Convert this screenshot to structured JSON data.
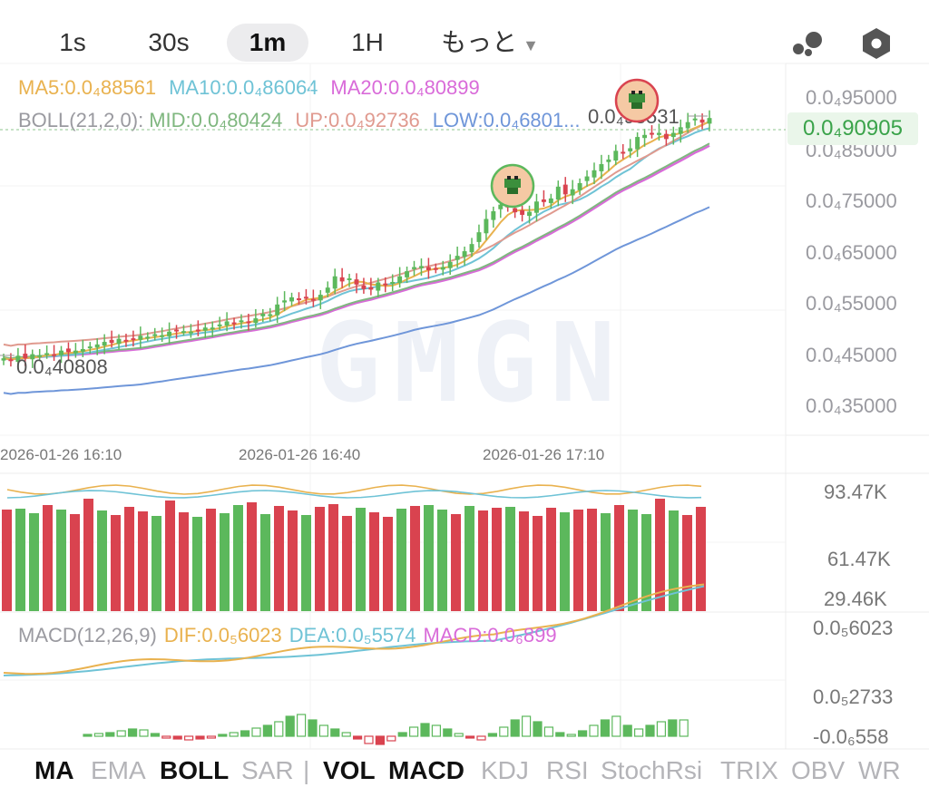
{
  "timeframes": {
    "t1s": "1s",
    "t30s": "30s",
    "t1m": "1m",
    "t1h": "1H",
    "more": "もっと",
    "active": "1m"
  },
  "icons": {
    "nodes": "bubbles-icon",
    "settings": "hexagon-settings-icon"
  },
  "colors": {
    "up": "#5cb85c",
    "down": "#d9434f",
    "ma5": "#e9b24f",
    "ma10": "#6fc3d6",
    "ma20": "#d96bd9",
    "boll_up": "#e09a8f",
    "boll_low": "#6f96d9",
    "boll_mid": "#7fb77f"
  },
  "legend_ma": {
    "ma5": "MA5:0.0₄88561",
    "ma10": "MA10:0.0₄86064",
    "ma20": "MA20:0.0₄80899"
  },
  "legend_boll": {
    "title": "BOLL(21,2,0):",
    "mid": "MID:0.0₄80424",
    "up": "UP:0.0₄92736",
    "low": "LOW:0.0₄6801..."
  },
  "price_axis": [
    "0.0₄95000",
    "0.0₄85000",
    "0.0₄75000",
    "0.0₄65000",
    "0.0₄55000",
    "0.0₄45000",
    "0.0₄35000"
  ],
  "current_price": "0.0₄90905",
  "high_marker": "0.0₄93531",
  "low_marker": "0.0₄40808",
  "time_axis": [
    "2026-01-26 16:10",
    "2026-01-26 16:40",
    "2026-01-26 17:10"
  ],
  "volume_axis": [
    "93.47K",
    "61.47K",
    "29.46K"
  ],
  "macd_legend": {
    "title": "MACD(12,26,9)",
    "dif": "DIF:0.0₅6023",
    "dea": "DEA:0.0₅5574",
    "macd": "MACD:0.0₆899"
  },
  "macd_axis": [
    "0.0₅6023",
    "0.0₅2733",
    "-0.0₆558"
  ],
  "watermark": "GMGN",
  "indicators": [
    {
      "label": "MA",
      "on": true
    },
    {
      "label": "EMA",
      "on": false
    },
    {
      "label": "BOLL",
      "on": true
    },
    {
      "label": "SAR",
      "on": false
    },
    {
      "label": "VOL",
      "on": true
    },
    {
      "label": "MACD",
      "on": true
    },
    {
      "label": "KDJ",
      "on": false
    },
    {
      "label": "RSI",
      "on": false
    },
    {
      "label": "StochRsi",
      "on": false
    },
    {
      "label": "TRIX",
      "on": false
    },
    {
      "label": "OBV",
      "on": false
    },
    {
      "label": "WR",
      "on": false
    }
  ],
  "chart_data": {
    "type": "candlestick",
    "price_unit": "0.0₄ (×1e-5)",
    "ylim": [
      3.15e-05,
      9.72e-05
    ],
    "x_ticks": [
      "2026-01-26 16:10",
      "2026-01-26 16:40",
      "2026-01-26 17:10"
    ],
    "candles_close": [
      4.4e-05,
      4.35e-05,
      4.45e-05,
      4.4e-05,
      4.48e-05,
      4.46e-05,
      4.5e-05,
      4.48e-05,
      4.55e-05,
      4.52e-05,
      4.55e-05,
      4.58e-05,
      4.63e-05,
      4.67e-05,
      4.72e-05,
      4.7e-05,
      4.78e-05,
      4.75e-05,
      4.78e-05,
      4.84e-05,
      4.82e-05,
      4.87e-05,
      4.85e-05,
      4.92e-05,
      4.95e-05,
      4.93e-05,
      4.92e-05,
      4.96e-05,
      5e-05,
      5e-05,
      5.06e-05,
      5.12e-05,
      5.09e-05,
      5.14e-05,
      5.11e-05,
      5.18e-05,
      5.27e-05,
      5.26e-05,
      5.45e-05,
      5.53e-05,
      5.59e-05,
      5.56e-05,
      5.58e-05,
      5.55e-05,
      5.64e-05,
      5.78e-05,
      6e-05,
      5.9e-05,
      5.96e-05,
      5.84e-05,
      5.75e-05,
      5.74e-05,
      5.88e-05,
      5.84e-05,
      5.89e-05,
      6e-05,
      6.1e-05,
      6.18e-05,
      6.2e-05,
      6.12e-05,
      6.15e-05,
      6.18e-05,
      6.28e-05,
      6.4e-05,
      6.49e-05,
      6.63e-05,
      6.86e-05,
      7.12e-05,
      7.27e-05,
      7.4e-05,
      7.35e-05,
      7.25e-05,
      7.2e-05,
      7.26e-05,
      7.46e-05,
      7.45e-05,
      7.52e-05,
      7.75e-05,
      7.6e-05,
      7.7e-05,
      7.82e-05,
      7.95e-05,
      8.07e-05,
      8.19e-05,
      8.28e-05,
      8.45e-05,
      8.4e-05,
      8.5e-05,
      8.72e-05,
      8.76e-05,
      8.78e-05,
      8.8e-05,
      8.68e-05,
      8.8e-05,
      8.91e-05,
      9.01e-05,
      9.08e-05,
      9e-05,
      9.09e-05
    ],
    "volume_range": [
      0,
      95000
    ],
    "macd_range": [
      -5.58e-08,
      6.023e-06
    ]
  }
}
